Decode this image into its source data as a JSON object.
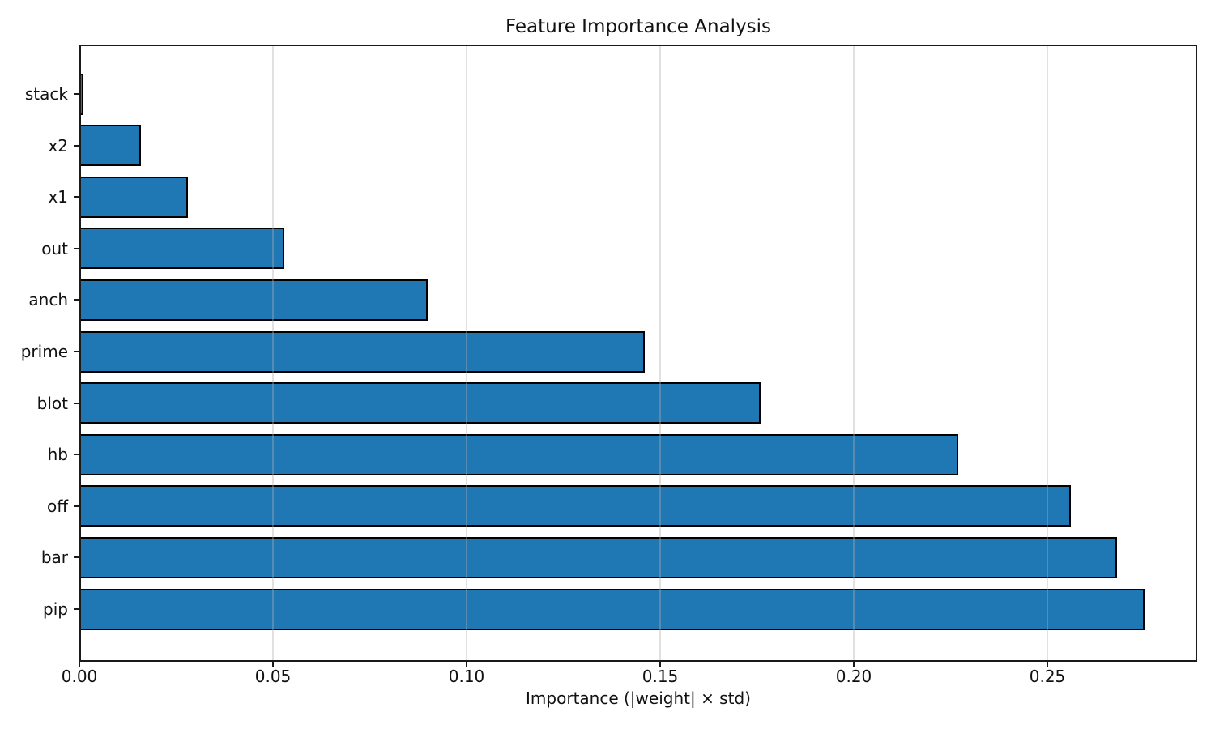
{
  "chart_data": {
    "type": "bar",
    "orientation": "horizontal",
    "title": "Feature Importance Analysis",
    "xlabel": "Importance (|weight| × std)",
    "ylabel": "",
    "categories_top_to_bottom": [
      "stack",
      "x2",
      "x1",
      "out",
      "anch",
      "prime",
      "blot",
      "hb",
      "off",
      "bar",
      "pip"
    ],
    "values": [
      0.001,
      0.016,
      0.028,
      0.053,
      0.09,
      0.146,
      0.176,
      0.227,
      0.256,
      0.268,
      0.275
    ],
    "x_ticks": [
      0.0,
      0.05,
      0.1,
      0.15,
      0.2,
      0.25
    ],
    "x_tick_labels": [
      "0.00",
      "0.05",
      "0.10",
      "0.15",
      "0.20",
      "0.25"
    ],
    "xlim": [
      0,
      0.2887
    ],
    "grid": "vertical",
    "legend": "none",
    "bar_color": "#1f77b4",
    "bar_edge_color": "#000000",
    "grid_color": "#b0b0b0",
    "axis_color": "#1a1a1a",
    "background": "#ffffff"
  }
}
